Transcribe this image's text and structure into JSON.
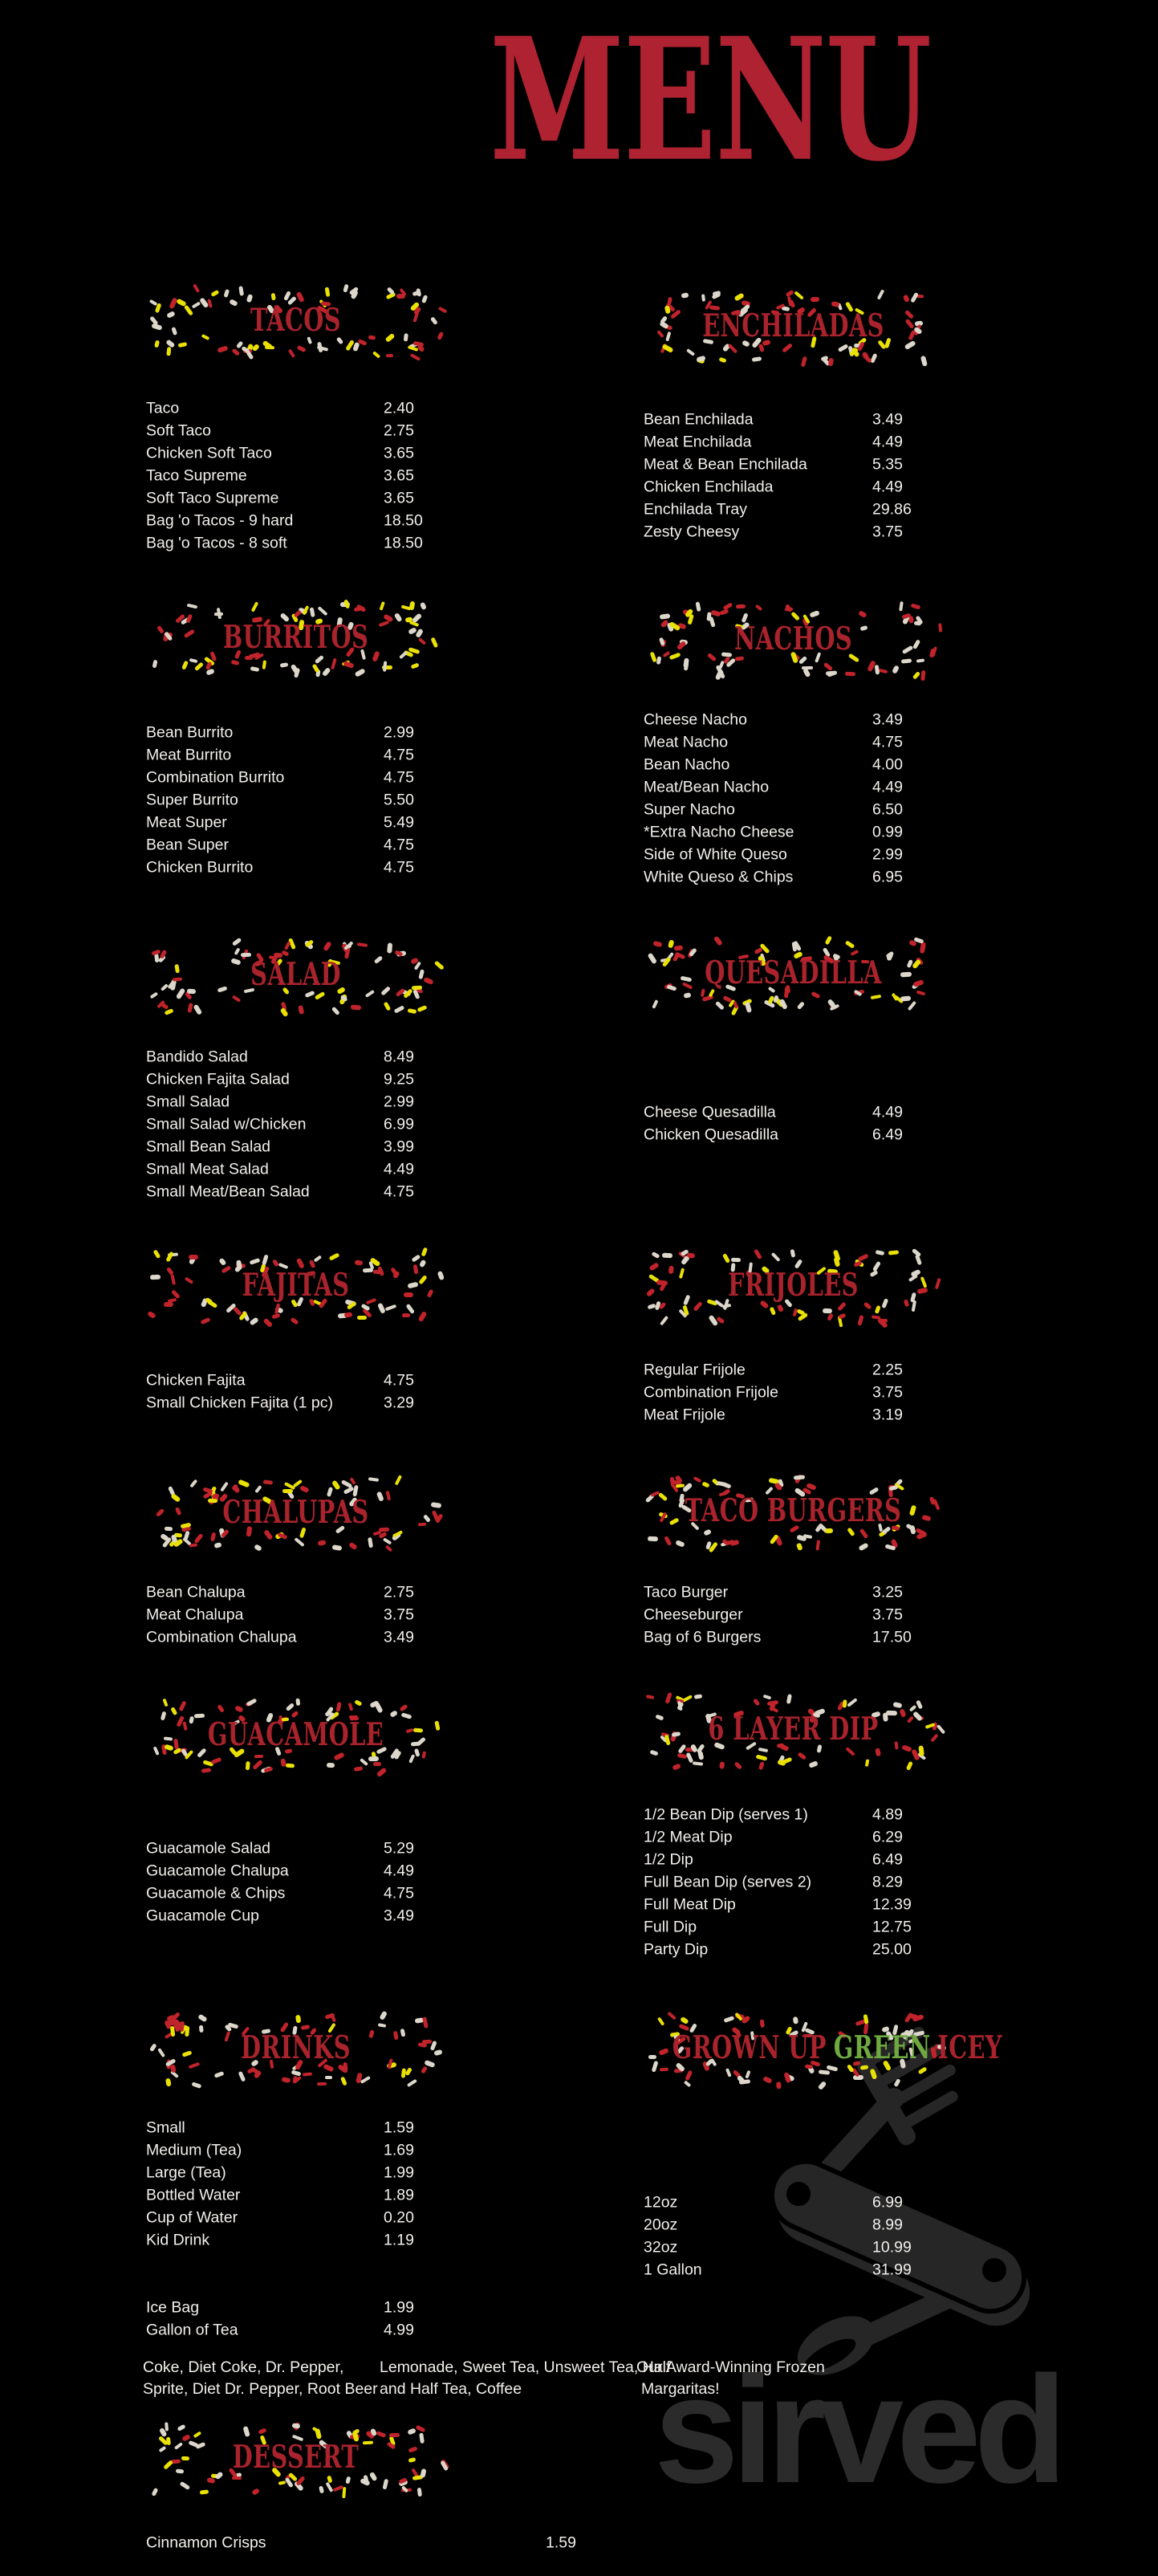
{
  "page_title": "MENU",
  "brand_watermark": "sirved",
  "colors": {
    "menu_red": "#ae2231",
    "accent_red": "#a8232c",
    "green": "#6fa83f",
    "confetti_red": "#c1232b",
    "confetti_white": "#dcd7ca",
    "confetti_yellow": "#eae104",
    "item_text": "#f2efec",
    "watermark_gray": "#2b2b2b",
    "knife_gray": "#262626",
    "background": "#000000"
  },
  "sections": [
    {
      "id": "tacos",
      "title_parts": [
        {
          "text": "TACOS",
          "color": "#a8232c"
        }
      ],
      "items": [
        {
          "name": "Taco",
          "price": "2.40"
        },
        {
          "name": "Soft Taco",
          "price": "2.75"
        },
        {
          "name": "Chicken Soft Taco",
          "price": "3.65"
        },
        {
          "name": "Taco Supreme",
          "price": "3.65"
        },
        {
          "name": "Soft Taco Supreme",
          "price": "3.65"
        },
        {
          "name": "Bag 'o Tacos - 9 hard",
          "price": "18.50"
        },
        {
          "name": "Bag 'o Tacos - 8 soft",
          "price": "18.50"
        }
      ]
    },
    {
      "id": "enchiladas",
      "title_parts": [
        {
          "text": "ENCHILADAS",
          "color": "#a8232c"
        }
      ],
      "items": [
        {
          "name": "Bean Enchilada",
          "price": "3.49"
        },
        {
          "name": "Meat Enchilada",
          "price": "4.49"
        },
        {
          "name": "Meat & Bean Enchilada",
          "price": "5.35"
        },
        {
          "name": "Chicken Enchilada",
          "price": "4.49"
        },
        {
          "name": "Enchilada Tray",
          "price": "29.86"
        },
        {
          "name": "Zesty Cheesy",
          "price": "3.75"
        }
      ]
    },
    {
      "id": "burritos",
      "title_parts": [
        {
          "text": "BURRITOS",
          "color": "#a8232c"
        }
      ],
      "items": [
        {
          "name": "Bean Burrito",
          "price": "2.99"
        },
        {
          "name": "Meat Burrito",
          "price": "4.75"
        },
        {
          "name": "Combination Burrito",
          "price": "4.75"
        },
        {
          "name": "Super Burrito",
          "price": "5.50"
        },
        {
          "name": "Meat Super",
          "price": "5.49"
        },
        {
          "name": "Bean Super",
          "price": "4.75"
        },
        {
          "name": "Chicken Burrito",
          "price": "4.75"
        }
      ]
    },
    {
      "id": "nachos",
      "title_parts": [
        {
          "text": "NACHOS",
          "color": "#a8232c"
        }
      ],
      "items": [
        {
          "name": "Cheese Nacho",
          "price": "3.49"
        },
        {
          "name": "Meat Nacho",
          "price": "4.75"
        },
        {
          "name": "Bean Nacho",
          "price": "4.00"
        },
        {
          "name": "Meat/Bean Nacho",
          "price": "4.49"
        },
        {
          "name": "Super Nacho",
          "price": "6.50"
        },
        {
          "name": "*Extra Nacho Cheese",
          "price": "0.99"
        },
        {
          "name": "Side of White Queso",
          "price": "2.99"
        },
        {
          "name": "White Queso & Chips",
          "price": "6.95"
        }
      ]
    },
    {
      "id": "salad",
      "title_parts": [
        {
          "text": "SALAD",
          "color": "#a8232c"
        }
      ],
      "items": [
        {
          "name": "Bandido Salad",
          "price": "8.49"
        },
        {
          "name": "Chicken Fajita Salad",
          "price": "9.25"
        },
        {
          "name": "Small Salad",
          "price": "2.99"
        },
        {
          "name": "Small Salad w/Chicken",
          "price": "6.99"
        },
        {
          "name": "Small Bean Salad",
          "price": "3.99"
        },
        {
          "name": "Small Meat Salad",
          "price": "4.49"
        },
        {
          "name": "Small Meat/Bean Salad",
          "price": "4.75"
        }
      ]
    },
    {
      "id": "quesadilla",
      "title_parts": [
        {
          "text": "QUESADILLA",
          "color": "#a8232c"
        }
      ],
      "items": [
        {
          "name": "Cheese Quesadilla",
          "price": "4.49"
        },
        {
          "name": "Chicken Quesadilla",
          "price": "6.49"
        }
      ]
    },
    {
      "id": "fajitas",
      "title_parts": [
        {
          "text": "FAJITAS",
          "color": "#a8232c"
        }
      ],
      "items": [
        {
          "name": "Chicken Fajita",
          "price": "4.75"
        },
        {
          "name": "Small Chicken Fajita (1 pc)",
          "price": "3.29"
        }
      ]
    },
    {
      "id": "frijoles",
      "title_parts": [
        {
          "text": "FRIJOLES",
          "color": "#a8232c"
        }
      ],
      "items": [
        {
          "name": "Regular Frijole",
          "price": "2.25"
        },
        {
          "name": "Combination Frijole",
          "price": "3.75"
        },
        {
          "name": "Meat Frijole",
          "price": "3.19"
        }
      ]
    },
    {
      "id": "chalupas",
      "title_parts": [
        {
          "text": "CHALUPAS",
          "color": "#a8232c"
        }
      ],
      "items": [
        {
          "name": "Bean Chalupa",
          "price": "2.75"
        },
        {
          "name": "Meat Chalupa",
          "price": "3.75"
        },
        {
          "name": "Combination Chalupa",
          "price": "3.49"
        }
      ]
    },
    {
      "id": "taco-burgers",
      "title_parts": [
        {
          "text": "TACO BURGERS",
          "color": "#a8232c"
        }
      ],
      "items": [
        {
          "name": "Taco Burger",
          "price": "3.25"
        },
        {
          "name": "Cheeseburger",
          "price": "3.75"
        },
        {
          "name": "Bag of 6 Burgers",
          "price": "17.50"
        }
      ]
    },
    {
      "id": "guacamole",
      "title_parts": [
        {
          "text": "GUACAMOLE",
          "color": "#a8232c"
        }
      ],
      "items": [
        {
          "name": "Guacamole Salad",
          "price": "5.29"
        },
        {
          "name": "Guacamole Chalupa",
          "price": "4.49"
        },
        {
          "name": "Guacamole & Chips",
          "price": "4.75"
        },
        {
          "name": "Guacamole Cup",
          "price": "3.49"
        }
      ]
    },
    {
      "id": "six-layer-dip",
      "title_parts": [
        {
          "text": "6 LAYER DIP",
          "color": "#a8232c"
        }
      ],
      "items": [
        {
          "name": "1/2 Bean Dip (serves 1)",
          "price": "4.89"
        },
        {
          "name": "1/2 Meat Dip",
          "price": "6.29"
        },
        {
          "name": "1/2 Dip",
          "price": "6.49"
        },
        {
          "name": "Full Bean Dip (serves 2)",
          "price": "8.29"
        },
        {
          "name": "Full Meat Dip",
          "price": "12.39"
        },
        {
          "name": "Full Dip",
          "price": "12.75"
        },
        {
          "name": "Party Dip",
          "price": "25.00"
        }
      ]
    },
    {
      "id": "drinks",
      "title_parts": [
        {
          "text": "DRINKS",
          "color": "#a8232c"
        }
      ],
      "items": [
        {
          "name": "Small",
          "price": "1.59"
        },
        {
          "name": "Medium (Tea)",
          "price": "1.69"
        },
        {
          "name": "Large (Tea)",
          "price": "1.99"
        },
        {
          "name": "Bottled Water",
          "price": "1.89"
        },
        {
          "name": "Cup of Water",
          "price": "0.20"
        },
        {
          "name": "Kid Drink",
          "price": "1.19"
        }
      ],
      "items2": [
        {
          "name": "Ice Bag",
          "price": "1.99"
        },
        {
          "name": "Gallon of Tea",
          "price": "4.99"
        }
      ]
    },
    {
      "id": "green-icey",
      "title_parts": [
        {
          "text": "GROWN UP",
          "color": "#a8232c"
        },
        {
          "text": "GREEN",
          "color": "#6fa83f"
        },
        {
          "text": "ICEY",
          "color": "#a8232c"
        }
      ],
      "items": [
        {
          "name": "12oz",
          "price": "6.99"
        },
        {
          "name": "20oz",
          "price": "8.99"
        },
        {
          "name": "32oz",
          "price": "10.99"
        },
        {
          "name": "1 Gallon",
          "price": "31.99"
        }
      ]
    },
    {
      "id": "dessert",
      "title_parts": [
        {
          "text": "DESSERT",
          "color": "#a8232c"
        }
      ],
      "items": [
        {
          "name": "Cinnamon Crisps",
          "price": "1.59"
        }
      ]
    }
  ],
  "notes": [
    {
      "lines": [
        "Coke, Diet Coke, Dr. Pepper,",
        "Sprite, Diet Dr. Pepper, Root Beer"
      ]
    },
    {
      "lines": [
        "Lemonade, Sweet Tea, Unsweet Tea, Half",
        "and Half Tea, Coffee"
      ]
    },
    {
      "lines": [
        "Our Award-Winning Frozen",
        "Margaritas!"
      ]
    }
  ]
}
